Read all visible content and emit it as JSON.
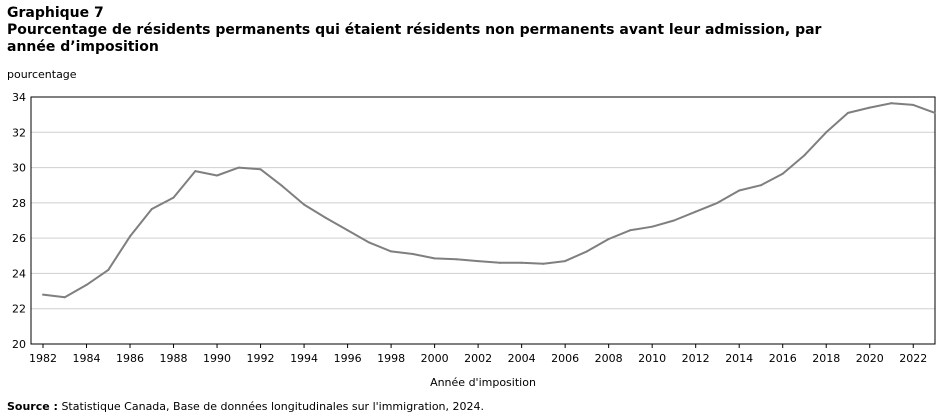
{
  "header": {
    "chart_label": "Graphique 7",
    "title": "Pourcentage de résidents permanents qui étaient résidents non permanents avant leur admission, par année d’imposition"
  },
  "footer": {
    "source_label": "Source :",
    "source_text": "Statistique Canada, Base de données longitudinales sur l'immigration, 2024."
  },
  "chart_data": {
    "type": "line",
    "title": "Pourcentage de résidents permanents qui étaient résidents non permanents avant leur admission, par année d’imposition",
    "xlabel": "Année d'imposition",
    "ylabel": "pourcentage",
    "xlim": [
      1982,
      2023
    ],
    "ylim": [
      20,
      34
    ],
    "xticks": [
      1982,
      1984,
      1986,
      1988,
      1990,
      1992,
      1994,
      1996,
      1998,
      2000,
      2002,
      2004,
      2006,
      2008,
      2010,
      2012,
      2014,
      2016,
      2018,
      2020,
      2022
    ],
    "yticks": [
      20,
      22,
      24,
      26,
      28,
      30,
      32,
      34
    ],
    "grid": "horizontal",
    "line_color": "#7f7f7f",
    "grid_color": "#cfcfcf",
    "series": [
      {
        "x": [
          1982,
          1983,
          1984,
          1985,
          1986,
          1987,
          1988,
          1989,
          1990,
          1991,
          1992,
          1993,
          1994,
          1995,
          1996,
          1997,
          1998,
          1999,
          2000,
          2001,
          2002,
          2003,
          2004,
          2005,
          2006,
          2007,
          2008,
          2009,
          2010,
          2011,
          2012,
          2013,
          2014,
          2015,
          2016,
          2017,
          2018,
          2019,
          2020,
          2021,
          2022,
          2023
        ],
        "values": [
          22.8,
          22.65,
          23.35,
          24.2,
          26.1,
          27.65,
          28.3,
          29.8,
          29.55,
          30.0,
          29.9,
          28.95,
          27.9,
          27.15,
          26.45,
          25.75,
          25.25,
          25.1,
          24.85,
          24.8,
          24.7,
          24.6,
          24.6,
          24.55,
          24.7,
          25.25,
          25.95,
          26.45,
          26.65,
          27.0,
          27.5,
          28.0,
          28.7,
          29.0,
          29.65,
          30.7,
          32.0,
          33.1,
          33.4,
          33.65,
          33.55,
          33.1
        ]
      }
    ]
  }
}
